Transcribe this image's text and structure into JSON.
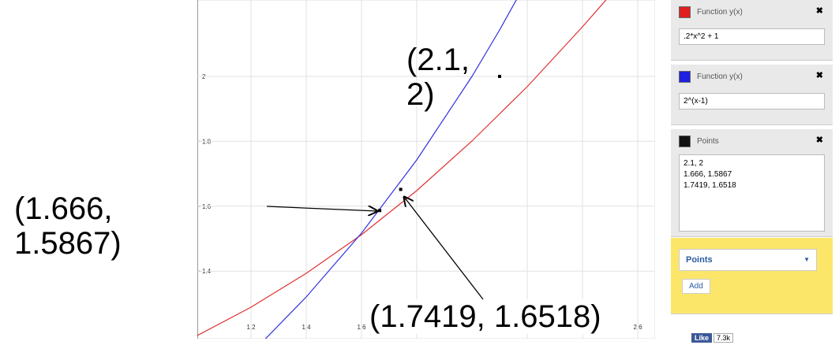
{
  "graph": {
    "x_ticks": [
      {
        "value": 1.2,
        "label": "1.2"
      },
      {
        "value": 1.4,
        "label": "1.4"
      },
      {
        "value": 1.6,
        "label": "1.6"
      },
      {
        "value": 1.8,
        "label": "1.8"
      },
      {
        "value": 2.2,
        "label": "2.2"
      },
      {
        "value": 2.4,
        "label": "2.4"
      },
      {
        "value": 2.6,
        "label": "2.6"
      }
    ],
    "y_ticks": [
      {
        "value": 1.4,
        "label": "1.4"
      },
      {
        "value": 1.6,
        "label": "1.6"
      },
      {
        "value": 1.8,
        "label": "1.8"
      },
      {
        "value": 2,
        "label": "2"
      }
    ],
    "points": [
      {
        "x": 2.1,
        "y": 2
      },
      {
        "x": 1.666,
        "y": 1.5867
      },
      {
        "x": 1.7419,
        "y": 1.6518
      }
    ]
  },
  "annotations": [
    "(2.1,\n2)",
    "(1.666,\n1.5867)",
    "(1.7419, 1.6518)"
  ],
  "sidebar": {
    "functions": [
      {
        "label": "Function y(x)",
        "expression": ".2*x^2 + 1"
      },
      {
        "label": "Function y(x)",
        "expression": "2^(x-1)"
      }
    ],
    "points_panel": {
      "label": "Points",
      "lines": [
        "2.1, 2",
        "1.666, 1.5867",
        "1.7419, 1.6518"
      ]
    },
    "dropdown": "Points",
    "add_button": "Add",
    "like": "Like",
    "like_count": "7.3k"
  }
}
